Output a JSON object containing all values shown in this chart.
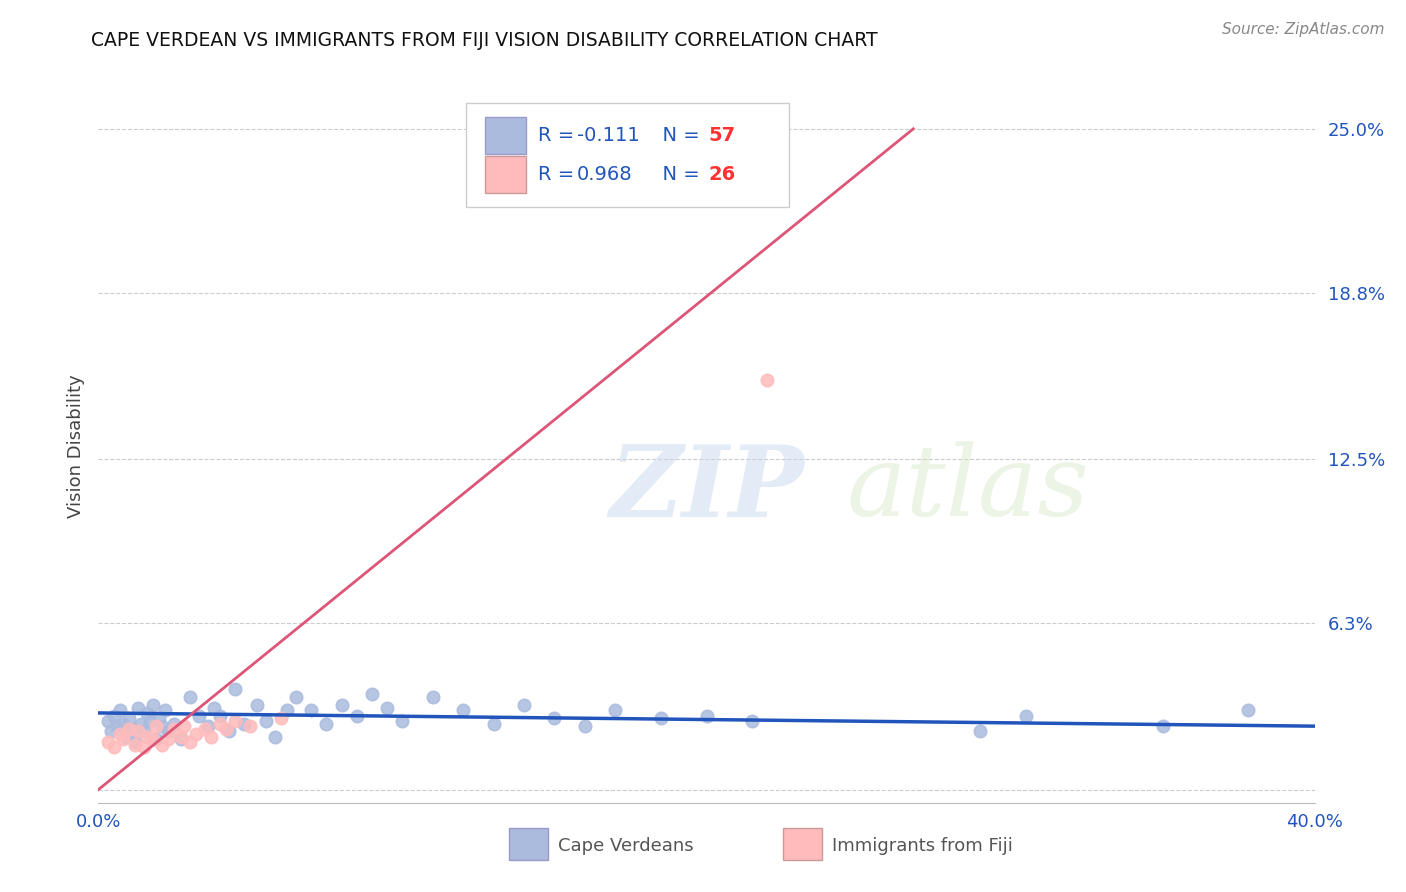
{
  "title": "CAPE VERDEAN VS IMMIGRANTS FROM FIJI VISION DISABILITY CORRELATION CHART",
  "source_text": "Source: ZipAtlas.com",
  "ylabel": "Vision Disability",
  "xlim": [
    0.0,
    0.4
  ],
  "ylim": [
    -0.005,
    0.265
  ],
  "xticks": [
    0.0,
    0.1,
    0.2,
    0.3,
    0.4
  ],
  "xticklabels": [
    "0.0%",
    "",
    "",
    "",
    "40.0%"
  ],
  "ytick_positions": [
    0.0,
    0.063,
    0.125,
    0.188,
    0.25
  ],
  "ytick_labels": [
    "",
    "6.3%",
    "12.5%",
    "18.8%",
    "25.0%"
  ],
  "grid_color": "#cccccc",
  "background_color": "#ffffff",
  "blue_marker_color": "#aabbdd",
  "pink_marker_color": "#ffbbbb",
  "blue_line_color": "#2255bb",
  "pink_line_color": "#dd5577",
  "legend_label_color": "#2255bb",
  "legend_N_color": "#ff3333",
  "R_blue": -0.111,
  "N_blue": 57,
  "R_pink": 0.968,
  "N_pink": 26,
  "watermark_text": "ZIPatlas",
  "blue_scatter_x": [
    0.003,
    0.004,
    0.005,
    0.006,
    0.007,
    0.008,
    0.009,
    0.01,
    0.011,
    0.012,
    0.013,
    0.014,
    0.015,
    0.016,
    0.017,
    0.018,
    0.019,
    0.02,
    0.021,
    0.022,
    0.023,
    0.025,
    0.027,
    0.03,
    0.033,
    0.036,
    0.038,
    0.04,
    0.043,
    0.045,
    0.048,
    0.052,
    0.055,
    0.058,
    0.062,
    0.065,
    0.07,
    0.075,
    0.08,
    0.085,
    0.09,
    0.095,
    0.1,
    0.11,
    0.12,
    0.13,
    0.14,
    0.15,
    0.16,
    0.17,
    0.185,
    0.2,
    0.215,
    0.29,
    0.305,
    0.35,
    0.378
  ],
  "blue_scatter_y": [
    0.026,
    0.022,
    0.028,
    0.024,
    0.03,
    0.025,
    0.02,
    0.027,
    0.023,
    0.018,
    0.031,
    0.025,
    0.022,
    0.029,
    0.026,
    0.032,
    0.019,
    0.027,
    0.024,
    0.03,
    0.022,
    0.025,
    0.019,
    0.035,
    0.028,
    0.024,
    0.031,
    0.028,
    0.022,
    0.038,
    0.025,
    0.032,
    0.026,
    0.02,
    0.03,
    0.035,
    0.03,
    0.025,
    0.032,
    0.028,
    0.036,
    0.031,
    0.026,
    0.035,
    0.03,
    0.025,
    0.032,
    0.027,
    0.024,
    0.03,
    0.027,
    0.028,
    0.026,
    0.022,
    0.028,
    0.024,
    0.03
  ],
  "pink_scatter_x": [
    0.003,
    0.005,
    0.007,
    0.008,
    0.01,
    0.012,
    0.013,
    0.015,
    0.016,
    0.018,
    0.019,
    0.021,
    0.023,
    0.025,
    0.027,
    0.028,
    0.03,
    0.032,
    0.035,
    0.037,
    0.04,
    0.042,
    0.045,
    0.05,
    0.06,
    0.22
  ],
  "pink_scatter_y": [
    0.018,
    0.016,
    0.021,
    0.019,
    0.023,
    0.017,
    0.022,
    0.016,
    0.02,
    0.019,
    0.024,
    0.017,
    0.019,
    0.023,
    0.02,
    0.024,
    0.018,
    0.021,
    0.023,
    0.02,
    0.025,
    0.023,
    0.026,
    0.024,
    0.027,
    0.155
  ],
  "pink_trend_x": [
    0.0,
    0.268
  ],
  "pink_trend_y": [
    0.0,
    0.25
  ],
  "blue_trend_x": [
    0.0,
    0.4
  ],
  "blue_trend_y": [
    0.029,
    0.024
  ]
}
